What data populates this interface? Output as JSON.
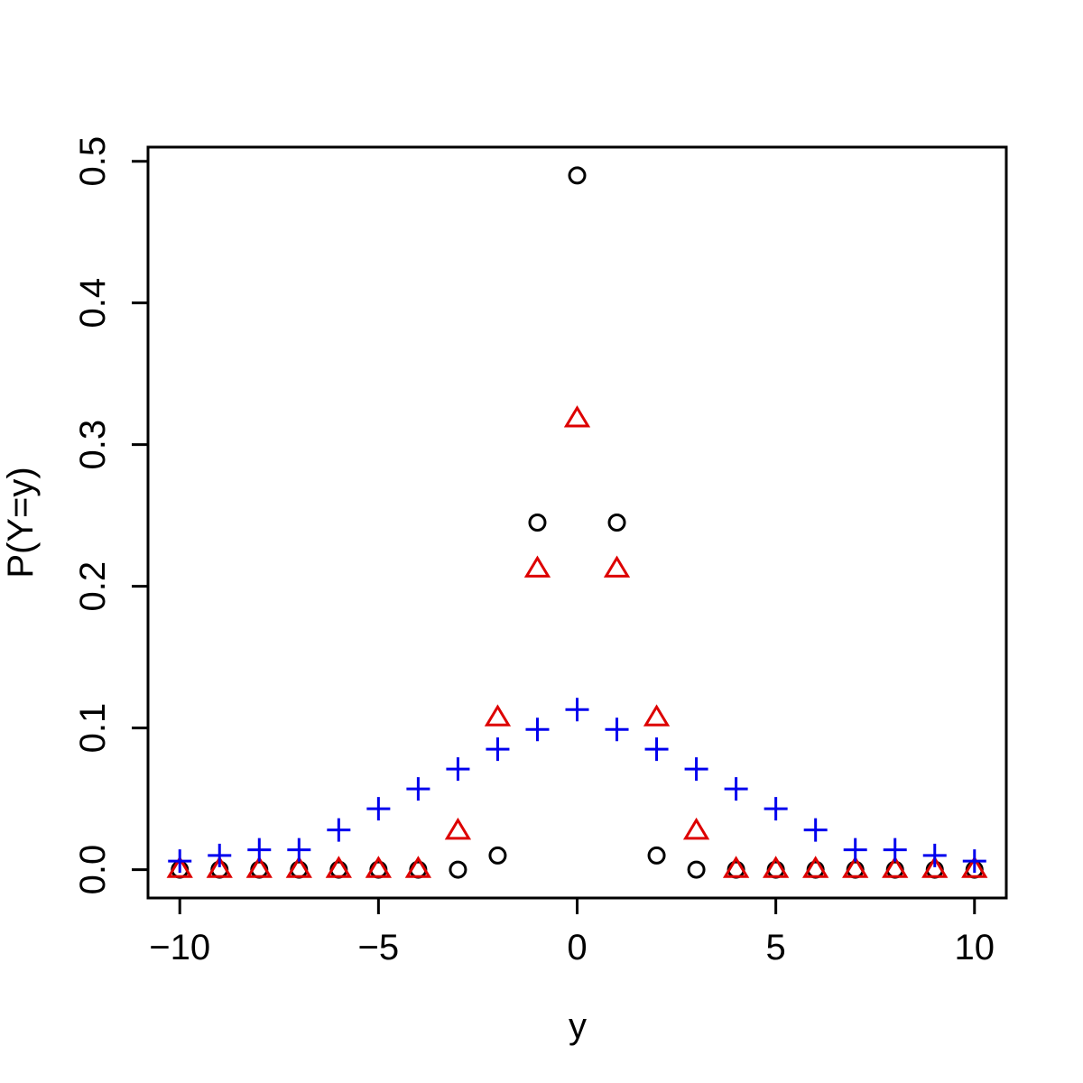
{
  "chart_data": {
    "type": "scatter",
    "title": "",
    "xlabel": "y",
    "ylabel": "P(Y=y)",
    "xlim": [
      -10.8,
      10.8
    ],
    "ylim": [
      -0.02,
      0.51
    ],
    "x_ticks": [
      -10,
      -5,
      0,
      5,
      10
    ],
    "x_tick_labels": [
      "−10",
      "−5",
      "0",
      "5",
      "10"
    ],
    "y_ticks": [
      0.0,
      0.1,
      0.2,
      0.3,
      0.4,
      0.5
    ],
    "y_tick_labels": [
      "0.0",
      "0.1",
      "0.2",
      "0.3",
      "0.4",
      "0.5"
    ],
    "grid": false,
    "legend": "none",
    "x": [
      -10,
      -9,
      -8,
      -7,
      -6,
      -5,
      -4,
      -3,
      -2,
      -1,
      0,
      1,
      2,
      3,
      4,
      5,
      6,
      7,
      8,
      9,
      10
    ],
    "series": [
      {
        "marker": "circle",
        "color": "#000000",
        "values": [
          0,
          0,
          0,
          0,
          0,
          0,
          0,
          0,
          0.01,
          0.245,
          0.49,
          0.245,
          0.01,
          0,
          0,
          0,
          0,
          0,
          0,
          0,
          0
        ]
      },
      {
        "marker": "triangle",
        "color": "#dd0000",
        "values": [
          0,
          0,
          0,
          0,
          0,
          0,
          0,
          0.027,
          0.107,
          0.212,
          0.318,
          0.212,
          0.107,
          0.027,
          0,
          0,
          0,
          0,
          0,
          0,
          0
        ]
      },
      {
        "marker": "plus",
        "color": "#0000ee",
        "values": [
          0.006,
          0.01,
          0.014,
          0.014,
          0.028,
          0.043,
          0.057,
          0.071,
          0.085,
          0.099,
          0.113,
          0.099,
          0.085,
          0.071,
          0.057,
          0.043,
          0.028,
          0.014,
          0.014,
          0.01,
          0.006
        ]
      }
    ]
  }
}
